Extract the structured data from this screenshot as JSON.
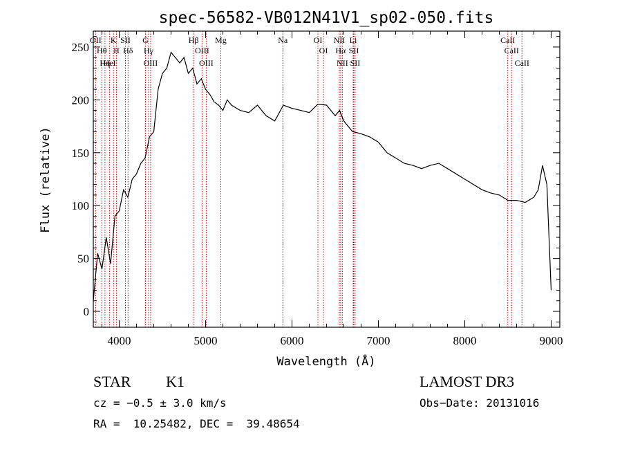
{
  "chart_data": {
    "type": "line",
    "title": "spec-56582-VB012N41V1_sp02-050.fits",
    "xlabel": "Wavelength (Å)",
    "ylabel": "Flux (relative)",
    "xlim": [
      3700,
      9100
    ],
    "ylim": [
      -15,
      265
    ],
    "xticks": [
      4000,
      5000,
      6000,
      7000,
      8000,
      9000
    ],
    "yticks": [
      0,
      50,
      100,
      150,
      200,
      250
    ],
    "grid": false,
    "series": [
      {
        "name": "spectrum",
        "x": [
          3700,
          3750,
          3800,
          3850,
          3900,
          3950,
          4000,
          4050,
          4100,
          4150,
          4200,
          4250,
          4300,
          4350,
          4400,
          4450,
          4500,
          4550,
          4600,
          4650,
          4700,
          4750,
          4800,
          4850,
          4900,
          4950,
          5000,
          5050,
          5100,
          5150,
          5200,
          5250,
          5300,
          5400,
          5500,
          5600,
          5700,
          5800,
          5900,
          6000,
          6100,
          6200,
          6300,
          6400,
          6500,
          6550,
          6600,
          6650,
          6700,
          6800,
          6900,
          7000,
          7100,
          7200,
          7300,
          7400,
          7500,
          7600,
          7700,
          7800,
          7900,
          8000,
          8100,
          8200,
          8300,
          8400,
          8500,
          8600,
          8700,
          8800,
          8850,
          8900,
          8950,
          9000
        ],
        "y": [
          10,
          55,
          40,
          70,
          45,
          90,
          95,
          115,
          108,
          125,
          130,
          140,
          145,
          165,
          170,
          210,
          225,
          230,
          245,
          240,
          235,
          240,
          225,
          230,
          215,
          220,
          210,
          205,
          198,
          195,
          190,
          200,
          195,
          190,
          188,
          195,
          185,
          180,
          195,
          192,
          190,
          188,
          196,
          195,
          185,
          190,
          180,
          175,
          170,
          168,
          165,
          160,
          150,
          145,
          140,
          138,
          135,
          138,
          140,
          135,
          130,
          125,
          120,
          115,
          112,
          110,
          105,
          105,
          103,
          108,
          115,
          138,
          120,
          20
        ]
      }
    ],
    "spectral_lines": [
      {
        "wavelength": 3727,
        "label": "OII"
      },
      {
        "wavelength": 3798,
        "label": "Hθ"
      },
      {
        "wavelength": 3835,
        "label": "Hη"
      },
      {
        "wavelength": 3889,
        "label": "HeI"
      },
      {
        "wavelength": 3934,
        "label": "K"
      },
      {
        "wavelength": 3968,
        "label": "H"
      },
      {
        "wavelength": 4072,
        "label": "SII"
      },
      {
        "wavelength": 4102,
        "label": "Hδ"
      },
      {
        "wavelength": 4304,
        "label": "G"
      },
      {
        "wavelength": 4340,
        "label": "Hγ"
      },
      {
        "wavelength": 4363,
        "label": "OIII"
      },
      {
        "wavelength": 4861,
        "label": "Hβ"
      },
      {
        "wavelength": 4959,
        "label": "OIII"
      },
      {
        "wavelength": 5007,
        "label": "OIII"
      },
      {
        "wavelength": 5175,
        "label": "Mg"
      },
      {
        "wavelength": 5894,
        "label": "Na"
      },
      {
        "wavelength": 6300,
        "label": "OI"
      },
      {
        "wavelength": 6364,
        "label": "OI"
      },
      {
        "wavelength": 6548,
        "label": "NII"
      },
      {
        "wavelength": 6563,
        "label": "Hα"
      },
      {
        "wavelength": 6583,
        "label": "NII"
      },
      {
        "wavelength": 6708,
        "label": "Li"
      },
      {
        "wavelength": 6716,
        "label": "SII"
      },
      {
        "wavelength": 6731,
        "label": "SII"
      },
      {
        "wavelength": 8498,
        "label": "CaII"
      },
      {
        "wavelength": 8542,
        "label": "CaII"
      },
      {
        "wavelength": 8662,
        "label": "CaII"
      }
    ]
  },
  "info": {
    "class": "STAR",
    "subclass": "K1",
    "survey": "LAMOST DR3",
    "redshift": "cz = −0.5 ± 3.0 km/s",
    "obs_date": "Obs−Date: 20131016",
    "coords": "RA =  10.25482, DEC =  39.48654"
  }
}
